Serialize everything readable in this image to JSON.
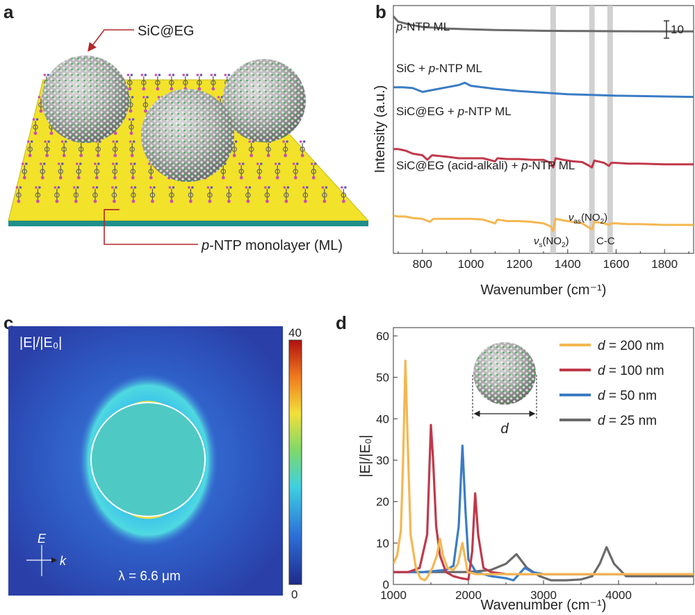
{
  "panels": {
    "a": {
      "letter": "a",
      "label_particle": "SiC@EG",
      "label_monolayer_italic": "p",
      "label_monolayer_rest": "-NTP monolayer (ML)"
    },
    "b": {
      "letter": "b",
      "scale_bar_label": "10",
      "traces": [
        {
          "label_pre": "",
          "label_italic": "p",
          "label_post": "-NTP ML",
          "color": "#6a6a6a"
        },
        {
          "label_pre": "SiC + ",
          "label_italic": "p",
          "label_post": "-NTP ML",
          "color": "#3a7cc4"
        },
        {
          "label_pre": "SiC@EG + ",
          "label_italic": "p",
          "label_post": "-NTP ML",
          "color": "#c0394b"
        },
        {
          "label_pre": "SiC@EG (acid-alkali) + ",
          "label_italic": "p",
          "label_post": "-NTP ML",
          "color": "#f4b752"
        }
      ],
      "annotations": {
        "vs": {
          "nu": "ν",
          "sub": "s",
          "rest": "(NO",
          "sub2": "2",
          "close": ")"
        },
        "vas": {
          "nu": "ν",
          "sub": "as",
          "rest": "(NO",
          "sub2": "2",
          "close": ")"
        },
        "cc": "C-C"
      },
      "highlight_bands": [
        1340,
        1500,
        1575
      ],
      "xlabel": "Wavenumber (cm⁻¹)",
      "ylabel": "Intensity (a.u.)",
      "xticks": [
        "800",
        "1000",
        "1200",
        "1400",
        "1600",
        "1800"
      ]
    },
    "c": {
      "letter": "c",
      "field_label": "|E|/|E₀|",
      "colorbar_max": "40",
      "colorbar_min": "0",
      "axis_e": "E",
      "axis_k": "k",
      "wavelength": "λ = 6.6 μm"
    },
    "d": {
      "letter": "d",
      "inset_label": "d",
      "legend": [
        {
          "prefix": "d",
          "suffix": " = 200 nm",
          "color": "#f4b752"
        },
        {
          "prefix": "d",
          "suffix": " = 100 nm",
          "color": "#c0394b"
        },
        {
          "prefix": "d",
          "suffix": " = 50 nm",
          "color": "#3a7cc4"
        },
        {
          "prefix": "d",
          "suffix": " = 25 nm",
          "color": "#6a6a6a"
        }
      ]
    }
  },
  "chart_data": [
    {
      "type": "line",
      "panel": "b",
      "title": "",
      "xlabel": "Wavenumber (cm⁻¹)",
      "ylabel": "Intensity (a.u.)",
      "xlim": [
        680,
        1920
      ],
      "series": [
        {
          "name": "p-NTP ML",
          "x": [
            680,
            700,
            750,
            800,
            900,
            1000,
            1100,
            1200,
            1300,
            1400,
            1500,
            1600,
            1700,
            1800,
            1920
          ],
          "y": [
            0.95,
            0.88,
            0.84,
            0.81,
            0.79,
            0.78,
            0.77,
            0.765,
            0.76,
            0.758,
            0.756,
            0.755,
            0.754,
            0.753,
            0.752
          ]
        },
        {
          "name": "SiC + p-NTP ML",
          "x": [
            680,
            720,
            760,
            800,
            850,
            900,
            950,
            975,
            1000,
            1100,
            1200,
            1300,
            1400,
            1500,
            1600,
            1700,
            1800,
            1920
          ],
          "y": [
            0.62,
            0.62,
            0.61,
            0.56,
            0.59,
            0.62,
            0.65,
            0.68,
            0.64,
            0.6,
            0.57,
            0.55,
            0.53,
            0.52,
            0.51,
            0.505,
            0.5,
            0.495
          ]
        },
        {
          "name": "SiC@EG + p-NTP ML",
          "x": [
            680,
            700,
            730,
            760,
            800,
            820,
            840,
            870,
            900,
            950,
            1000,
            1050,
            1100,
            1110,
            1150,
            1200,
            1250,
            1300,
            1330,
            1340,
            1350,
            1380,
            1420,
            1460,
            1490,
            1500,
            1510,
            1550,
            1570,
            1580,
            1600,
            1650,
            1700,
            1800,
            1920
          ],
          "y": [
            0.32,
            0.32,
            0.3,
            0.26,
            0.24,
            0.18,
            0.24,
            0.23,
            0.22,
            0.2,
            0.2,
            0.2,
            0.16,
            0.2,
            0.19,
            0.19,
            0.18,
            0.18,
            0.14,
            0.08,
            0.2,
            0.18,
            0.16,
            0.15,
            0.1,
            0.08,
            0.17,
            0.14,
            0.1,
            0.14,
            0.14,
            0.13,
            0.13,
            0.12,
            0.12
          ]
        },
        {
          "name": "SiC@EG (acid-alkali) + p-NTP ML",
          "x": [
            680,
            700,
            730,
            760,
            800,
            830,
            845,
            860,
            900,
            950,
            1000,
            1050,
            1100,
            1110,
            1150,
            1200,
            1250,
            1300,
            1330,
            1340,
            1350,
            1380,
            1420,
            1460,
            1490,
            1500,
            1510,
            1550,
            1570,
            1580,
            1600,
            1650,
            1700,
            1800,
            1920
          ],
          "y": [
            -0.08,
            -0.09,
            -0.09,
            -0.11,
            -0.12,
            -0.16,
            -0.12,
            -0.12,
            -0.12,
            -0.12,
            -0.12,
            -0.13,
            -0.18,
            -0.13,
            -0.15,
            -0.15,
            -0.16,
            -0.18,
            -0.22,
            -0.28,
            -0.12,
            -0.14,
            -0.16,
            -0.18,
            -0.24,
            -0.26,
            -0.16,
            -0.18,
            -0.2,
            -0.18,
            -0.18,
            -0.19,
            -0.19,
            -0.2,
            -0.2
          ]
        }
      ]
    },
    {
      "type": "heatmap",
      "panel": "c",
      "title": "|E|/|E₀|",
      "colorbar_range": [
        0,
        40
      ],
      "wavelength_um": 6.6
    },
    {
      "type": "line",
      "panel": "d",
      "title": "",
      "xlabel": "Wavenumber (cm⁻¹)",
      "ylabel": "|E|/|E₀|",
      "xlim": [
        1000,
        5000
      ],
      "ylim": [
        0,
        62
      ],
      "xticks": [
        1000,
        2000,
        3000,
        4000
      ],
      "yticks": [
        0,
        10,
        20,
        30,
        40,
        50,
        60
      ],
      "series": [
        {
          "name": "d = 200 nm",
          "x": [
            1000,
            1050,
            1100,
            1130,
            1160,
            1190,
            1230,
            1300,
            1360,
            1420,
            1460,
            1520,
            1580,
            1620,
            1660,
            1720,
            1800,
            1860,
            1920,
            1950,
            1990,
            2100,
            2300,
            2600,
            3000,
            3500,
            4000,
            4500,
            5000
          ],
          "y": [
            5,
            7,
            13,
            30,
            54,
            35,
            12,
            4,
            1.5,
            1,
            2,
            4,
            7,
            11,
            7,
            4,
            3.5,
            5,
            10,
            7,
            3,
            2.5,
            2.5,
            2.5,
            2.5,
            2.5,
            2.5,
            2.5,
            2.5
          ]
        },
        {
          "name": "d = 100 nm",
          "x": [
            1000,
            1200,
            1350,
            1450,
            1500,
            1530,
            1570,
            1620,
            1700,
            1800,
            1900,
            2000,
            2050,
            2090,
            2130,
            2200,
            2300,
            2500,
            2800,
            3200,
            3600,
            4000,
            4500,
            5000
          ],
          "y": [
            3,
            3,
            4,
            12,
            38.5,
            30,
            14,
            7,
            3,
            2,
            1.5,
            1.2,
            8,
            22,
            12,
            4,
            3,
            2.5,
            2.5,
            2.5,
            2.5,
            2.5,
            2.5,
            2.5
          ]
        },
        {
          "name": "d = 50 nm",
          "x": [
            1000,
            1400,
            1700,
            1800,
            1870,
            1920,
            1960,
            2000,
            2100,
            2300,
            2500,
            2600,
            2650,
            2750,
            2850,
            3000,
            3500,
            4000,
            4500,
            5000
          ],
          "y": [
            3,
            3,
            3.5,
            4.5,
            14,
            33.5,
            18,
            6,
            3,
            2,
            1.5,
            1,
            2,
            4,
            3,
            2.5,
            2.5,
            2.5,
            2.5,
            2.5
          ]
        },
        {
          "name": "d = 25 nm",
          "x": [
            1000,
            1500,
            2000,
            2300,
            2500,
            2640,
            2780,
            2950,
            3100,
            3300,
            3500,
            3650,
            3750,
            3840,
            3940,
            4100,
            4400,
            4700,
            5000
          ],
          "y": [
            3,
            3,
            3,
            3.5,
            5,
            7.3,
            4,
            2,
            1,
            1,
            1.2,
            2,
            5,
            9,
            5,
            2,
            2,
            2,
            2
          ]
        }
      ]
    }
  ]
}
